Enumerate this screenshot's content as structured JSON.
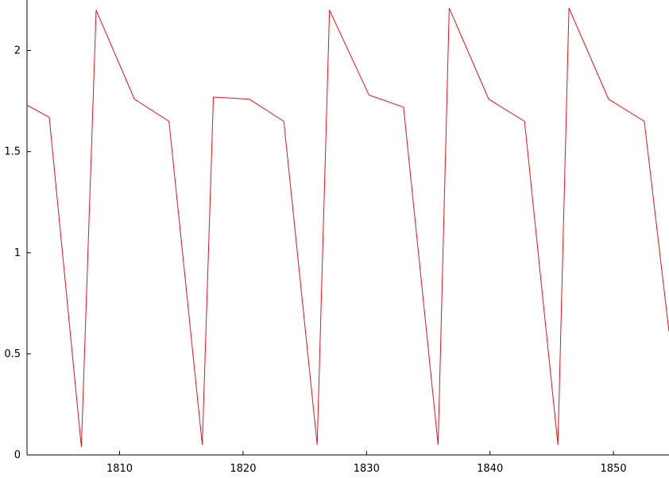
{
  "chart_data": {
    "type": "line",
    "title": "",
    "xlabel": "",
    "ylabel": "",
    "xlim": [
      1802.5,
      1854.5
    ],
    "ylim": [
      0,
      2.25
    ],
    "x_ticks": [
      1810,
      1820,
      1830,
      1840,
      1850
    ],
    "x_tick_labels": [
      "1810",
      "1820",
      "1830",
      "1840",
      "1850"
    ],
    "y_ticks": [
      0,
      0.5,
      1,
      1.5,
      2
    ],
    "y_tick_labels": [
      "0",
      "0.5",
      "1",
      "1.5",
      "2"
    ],
    "grid": false,
    "legend": "none",
    "series": [
      {
        "color": "#e8111a",
        "x": [
          1802.5,
          1804.3,
          1806.9,
          1808.1,
          1811.2,
          1814.0,
          1816.7,
          1817.6,
          1820.5,
          1823.3,
          1826.0,
          1827.0,
          1830.2,
          1833.0,
          1835.8,
          1836.7,
          1839.9,
          1842.8,
          1845.5,
          1846.4,
          1849.6,
          1852.5,
          1854.5
        ],
        "y": [
          1.73,
          1.67,
          0.04,
          2.2,
          1.76,
          1.65,
          0.05,
          1.77,
          1.76,
          1.65,
          0.05,
          2.2,
          1.78,
          1.72,
          0.05,
          2.21,
          1.76,
          1.65,
          0.05,
          2.21,
          1.76,
          1.65,
          0.61
        ]
      }
    ]
  }
}
